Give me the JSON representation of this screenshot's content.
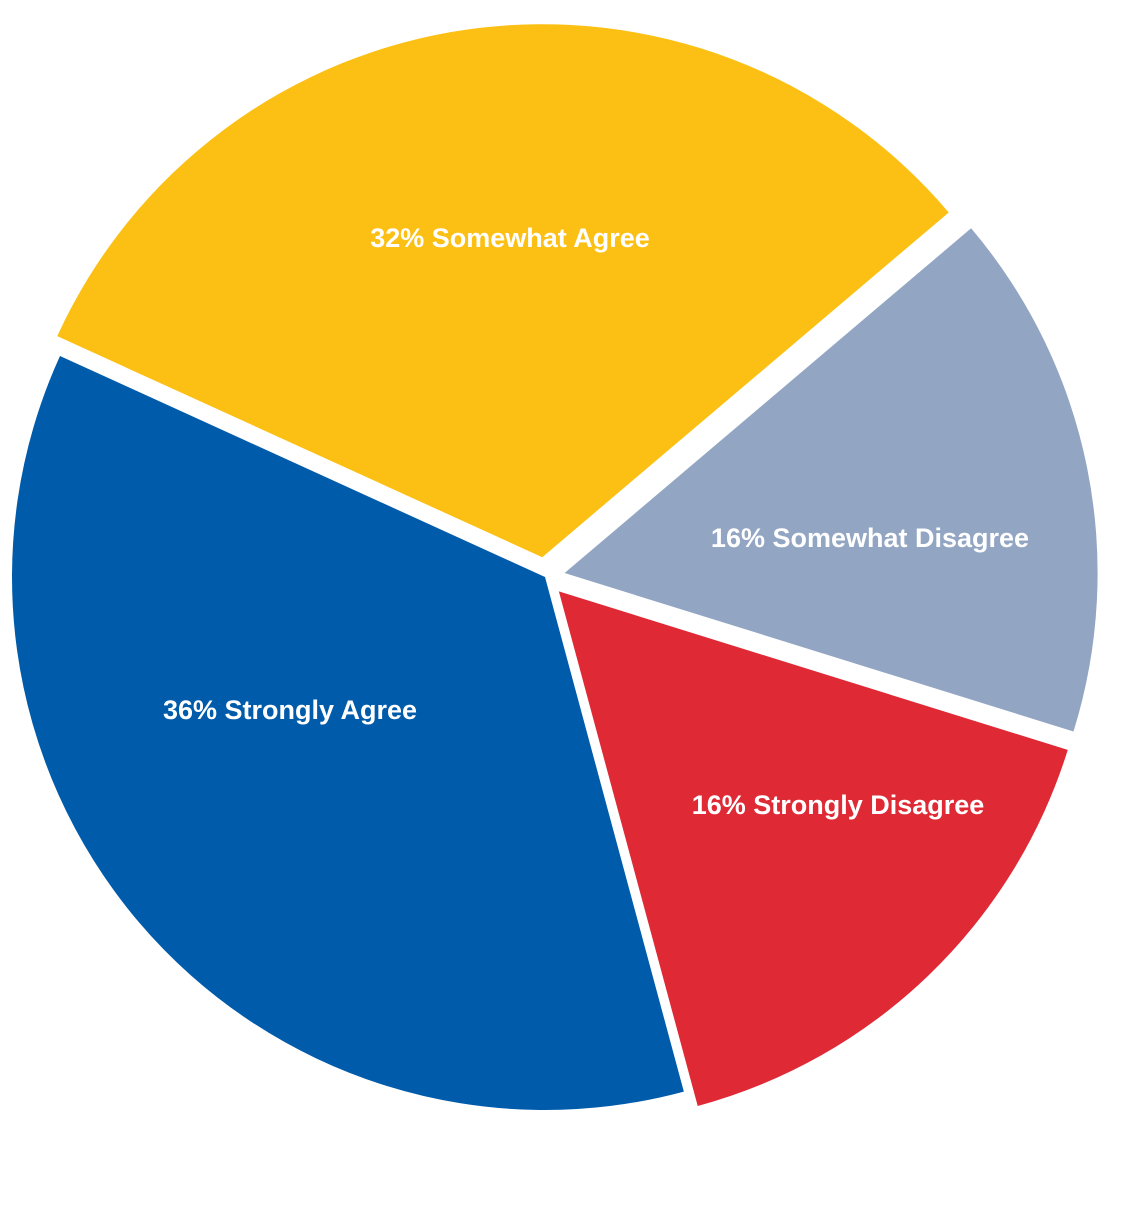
{
  "chart_data": {
    "type": "pie",
    "categories": [
      "Somewhat Agree",
      "Somewhat Disagree",
      "Strongly Disagree",
      "Strongly Agree"
    ],
    "values": [
      32,
      16,
      16,
      36
    ],
    "unit": "%",
    "labels": [
      "32% Somewhat Agree",
      "16% Somewhat Disagree",
      "16% Strongly Disagree",
      "36% Strongly Agree"
    ],
    "colors": [
      "#FBC013",
      "#92A5C2",
      "#DF2935",
      "#005BAA"
    ],
    "exploded": [
      true,
      true,
      true,
      false
    ],
    "title": "",
    "legend": "none"
  }
}
